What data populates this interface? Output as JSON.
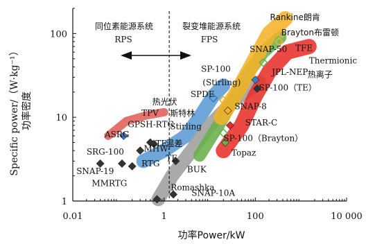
{
  "chart_data": {
    "type": "scatter",
    "x_scale": "log",
    "y_scale": "log",
    "xlim": [
      0.01,
      10000
    ],
    "ylim": [
      1,
      200
    ],
    "x_ticks": [
      {
        "value": 0.01,
        "label": "0.01"
      },
      {
        "value": 1,
        "label": "1"
      },
      {
        "value": 100,
        "label": "100"
      },
      {
        "value": 10000,
        "label": "10 000"
      }
    ],
    "y_ticks": [
      {
        "value": 1,
        "label": "1"
      },
      {
        "value": 10,
        "label": "10"
      },
      {
        "value": 100,
        "label": "100"
      }
    ],
    "xlabel": "功率Power/kW",
    "ylabel_en": "Specific power/（W·kg⁻¹）",
    "ylabel_cn": "功率密度",
    "region_labels": {
      "rps_cn": "同位素能源系统",
      "rps": "RPS",
      "fps_cn": "裂变堆能源系统",
      "fps": "FPS",
      "boundary_x": 1.3
    },
    "bands": [
      {
        "name": "热光伏 TPV",
        "label_cn": "热光伏",
        "label_en": "TPV",
        "color": "#e0605a",
        "points": [
          [
            0.06,
            6.0
          ],
          [
            0.15,
            9.0
          ],
          [
            0.4,
            10.5
          ],
          [
            1.0,
            11.5
          ]
        ],
        "width": 12
      },
      {
        "name": "Stirling",
        "label_cn": "斯特林",
        "label_en": "Stirling",
        "color": "#5b9bd5",
        "points": [
          [
            0.35,
            3.0
          ],
          [
            1.0,
            4.0
          ],
          [
            3,
            6
          ],
          [
            6,
            10
          ],
          [
            12,
            18
          ],
          [
            20,
            24
          ]
        ],
        "width": 20
      },
      {
        "name": "Thermoelectric",
        "label_cn": "温差",
        "label_en": "TE",
        "color": "#9e9e9e",
        "points": [
          [
            0.75,
            1.05
          ],
          [
            1.5,
            2.0
          ],
          [
            4,
            4
          ],
          [
            10,
            8
          ],
          [
            35,
            16
          ],
          [
            120,
            26
          ]
        ],
        "width": 20
      },
      {
        "name": "Brayton",
        "label_cn": "布雷顿",
        "label_en": "Brayton",
        "color": "#6ab04c",
        "points": [
          [
            6,
            3.5
          ],
          [
            20,
            10
          ],
          [
            60,
            30
          ],
          [
            150,
            60
          ],
          [
            350,
            90
          ]
        ],
        "width": 18
      },
      {
        "name": "Thermionic",
        "label_cn": "热离子",
        "label_en": "Thermionic",
        "color": "#e8302a",
        "points": [
          [
            20,
            4
          ],
          [
            50,
            8
          ],
          [
            100,
            18
          ],
          [
            200,
            35
          ],
          [
            500,
            60
          ],
          [
            1500,
            70
          ]
        ],
        "width": 22
      },
      {
        "name": "Rankine",
        "label_cn": "朗肯",
        "label_en": "Rankine",
        "color": "#f5b229",
        "points": [
          [
            18,
            10
          ],
          [
            40,
            20
          ],
          [
            100,
            50
          ],
          [
            200,
            100
          ],
          [
            450,
            150
          ]
        ],
        "width": 22
      }
    ],
    "points": [
      {
        "name": "GPSH-RTG",
        "x": 0.5,
        "y": 5.0,
        "marker": "diamond",
        "color": "#333333"
      },
      {
        "name": "TE",
        "x": 0.6,
        "y": 4.8,
        "marker": "diamond",
        "color": "#333333"
      },
      {
        "name": "ASRG",
        "x": 0.13,
        "y": 6.0,
        "marker": "diamond",
        "color": "#3a7dc9"
      },
      {
        "name": "SRG-100",
        "x": 0.04,
        "y": 2.8,
        "marker": "diamond",
        "color": "#333333"
      },
      {
        "name": "MHW-RTG",
        "x": 0.3,
        "y": 4.0,
        "marker": "diamond",
        "color": "#333333"
      },
      {
        "name": "SNAP-19",
        "x": 0.2,
        "y": 2.6,
        "marker": "diamond",
        "color": "#333333"
      },
      {
        "name": "MMRTG",
        "x": 0.12,
        "y": 2.8,
        "marker": "diamond",
        "color": "#333333"
      },
      {
        "name": "Romashka",
        "x": 0.7,
        "y": 1.05,
        "marker": "diamond",
        "color": "#333333"
      },
      {
        "name": "BUK",
        "x": 1.8,
        "y": 3.0,
        "marker": "diamond",
        "color": "#333333"
      },
      {
        "name": "SNAP-10A",
        "x": 1.6,
        "y": 1.2,
        "marker": "diamond",
        "color": "#333333"
      },
      {
        "name": "SPDE",
        "x": 12,
        "y": 17,
        "marker": "diamond-open",
        "color": "#3a7dc9"
      },
      {
        "name": "SP-100 (Stirling)",
        "x": 20,
        "y": 16,
        "marker": "diamond-open",
        "color": "#f5b229"
      },
      {
        "name": "SNAP-8",
        "x": 25,
        "y": 12,
        "marker": "diamond",
        "color": "#f5b229"
      },
      {
        "name": "STAR-C",
        "x": 28,
        "y": 8.0,
        "marker": "diamond",
        "color": "#e8302a"
      },
      {
        "name": "SP-100 (Brayton)",
        "x": 20,
        "y": 6.5,
        "marker": "diamond-open",
        "color": "#6ab04c"
      },
      {
        "name": "Topaz",
        "x": 22,
        "y": 5.0,
        "marker": "diamond",
        "color": "#6ab04c"
      },
      {
        "name": "SP-100 (TE)",
        "x": 110,
        "y": 22,
        "marker": "diamond",
        "color": "#333333"
      },
      {
        "name": "JPL-NEP",
        "x": 100,
        "y": 28,
        "marker": "diamond",
        "color": "#3a7dc9"
      },
      {
        "name": "SNAP-50",
        "x": 150,
        "y": 45,
        "marker": "diamond-open",
        "color": "#6ab04c"
      },
      {
        "name": "Brayton",
        "x": 330,
        "y": 80,
        "marker": "diamond-open",
        "color": "#f5b229"
      },
      {
        "name": "Rankine",
        "x": 380,
        "y": 100,
        "marker": "diamond-open",
        "color": "#f5b229"
      }
    ],
    "annotations": [
      {
        "text": "热光伏",
        "x": 0.55,
        "y": 14.2
      },
      {
        "text": "TPV",
        "x": 0.32,
        "y": 10.4
      },
      {
        "text": "GPSH-RTG",
        "x": 0.16,
        "y": 7.6
      },
      {
        "text": "ASRG",
        "x": 0.05,
        "y": 5.8
      },
      {
        "text": "TE",
        "x": 0.65,
        "y": 4.5
      },
      {
        "text": "斯特林",
        "x": 1.35,
        "y": 10.3
      },
      {
        "text": "Stirling",
        "x": 1.35,
        "y": 7.2
      },
      {
        "text": "SRG-100",
        "x": 0.02,
        "y": 3.6
      },
      {
        "text": "MHW-",
        "x": 0.36,
        "y": 3.9
      },
      {
        "text": "RTG",
        "x": 0.32,
        "y": 2.6
      },
      {
        "text": "SNAP-19",
        "x": 0.012,
        "y": 2.1
      },
      {
        "text": "MMRTG",
        "x": 0.026,
        "y": 1.5
      },
      {
        "text": "温差",
        "x": 1.1,
        "y": 4.5
      },
      {
        "text": "TE",
        "x": 1.1,
        "y": 3.0
      },
      {
        "text": "BUK",
        "x": 3.2,
        "y": 2.2
      },
      {
        "text": "Romashka",
        "x": 1.4,
        "y": 1.35
      },
      {
        "text": "SNAP-10A",
        "x": 4.0,
        "y": 1.15
      },
      {
        "text": "SPDE",
        "x": 3.8,
        "y": 17.5
      },
      {
        "text": "SP-100",
        "x": 6.5,
        "y": 35
      },
      {
        "text": "(Stirling)",
        "x": 7.0,
        "y": 24
      },
      {
        "text": "SNAP-8",
        "x": 35,
        "y": 12.5
      },
      {
        "text": "STAR-C",
        "x": 60,
        "y": 8.0
      },
      {
        "text": "SP-100（Brayton）",
        "x": 20,
        "y": 5.2
      },
      {
        "text": "Topaz",
        "x": 30,
        "y": 3.5
      },
      {
        "text": "SP-100（TE）",
        "x": 120,
        "y": 21
      },
      {
        "text": "JPL-NEP",
        "x": 230,
        "y": 32
      },
      {
        "text": "SNAP-50",
        "x": 75,
        "y": 60
      },
      {
        "text": "Rankine朗肯",
        "x": 210,
        "y": 145
      },
      {
        "text": "Brayton布雷顿",
        "x": 370,
        "y": 95
      },
      {
        "text": "TFE",
        "x": 750,
        "y": 62
      },
      {
        "text": "Thermionic",
        "x": 1500,
        "y": 44
      },
      {
        "text": "热离子",
        "x": 1400,
        "y": 30
      }
    ]
  }
}
